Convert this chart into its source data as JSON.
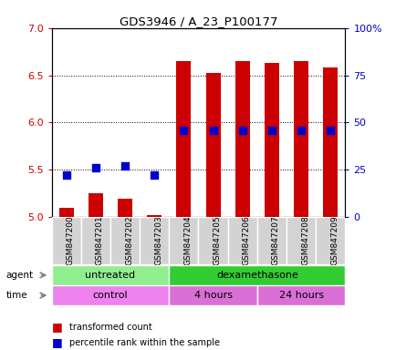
{
  "title": "GDS3946 / A_23_P100177",
  "samples": [
    "GSM847200",
    "GSM847201",
    "GSM847202",
    "GSM847203",
    "GSM847204",
    "GSM847205",
    "GSM847206",
    "GSM847207",
    "GSM847208",
    "GSM847209"
  ],
  "transformed_count": [
    5.1,
    5.25,
    5.19,
    5.02,
    6.65,
    6.52,
    6.65,
    6.63,
    6.65,
    6.58
  ],
  "percentile_rank": [
    22,
    26,
    27,
    22,
    46,
    46,
    46,
    46,
    46,
    46
  ],
  "ylim_left": [
    5.0,
    7.0
  ],
  "ylim_right": [
    0,
    100
  ],
  "yticks_left": [
    5.0,
    5.5,
    6.0,
    6.5,
    7.0
  ],
  "yticks_right": [
    0,
    25,
    50,
    75,
    100
  ],
  "ytick_labels_right": [
    "0",
    "25",
    "50",
    "75",
    "100%"
  ],
  "bar_color": "#cc0000",
  "dot_color": "#0000cc",
  "agent_groups": [
    {
      "label": "untreated",
      "start": 0,
      "end": 4,
      "color": "#90ee90"
    },
    {
      "label": "dexamethasone",
      "start": 4,
      "end": 10,
      "color": "#32cd32"
    }
  ],
  "time_groups": [
    {
      "label": "control",
      "start": 0,
      "end": 4,
      "color": "#ee82ee"
    },
    {
      "label": "4 hours",
      "start": 4,
      "end": 7,
      "color": "#da70d6"
    },
    {
      "label": "24 hours",
      "start": 7,
      "end": 10,
      "color": "#da70d6"
    }
  ],
  "legend_items": [
    {
      "label": "transformed count",
      "color": "#cc0000"
    },
    {
      "label": "percentile rank within the sample",
      "color": "#0000cc"
    }
  ],
  "bar_color_dark": "#8b0000",
  "bar_width": 0.5,
  "dot_size": 40,
  "sample_box_color": "#d3d3d3",
  "left_tick_color": "#cc0000",
  "right_tick_color": "#0000cc"
}
